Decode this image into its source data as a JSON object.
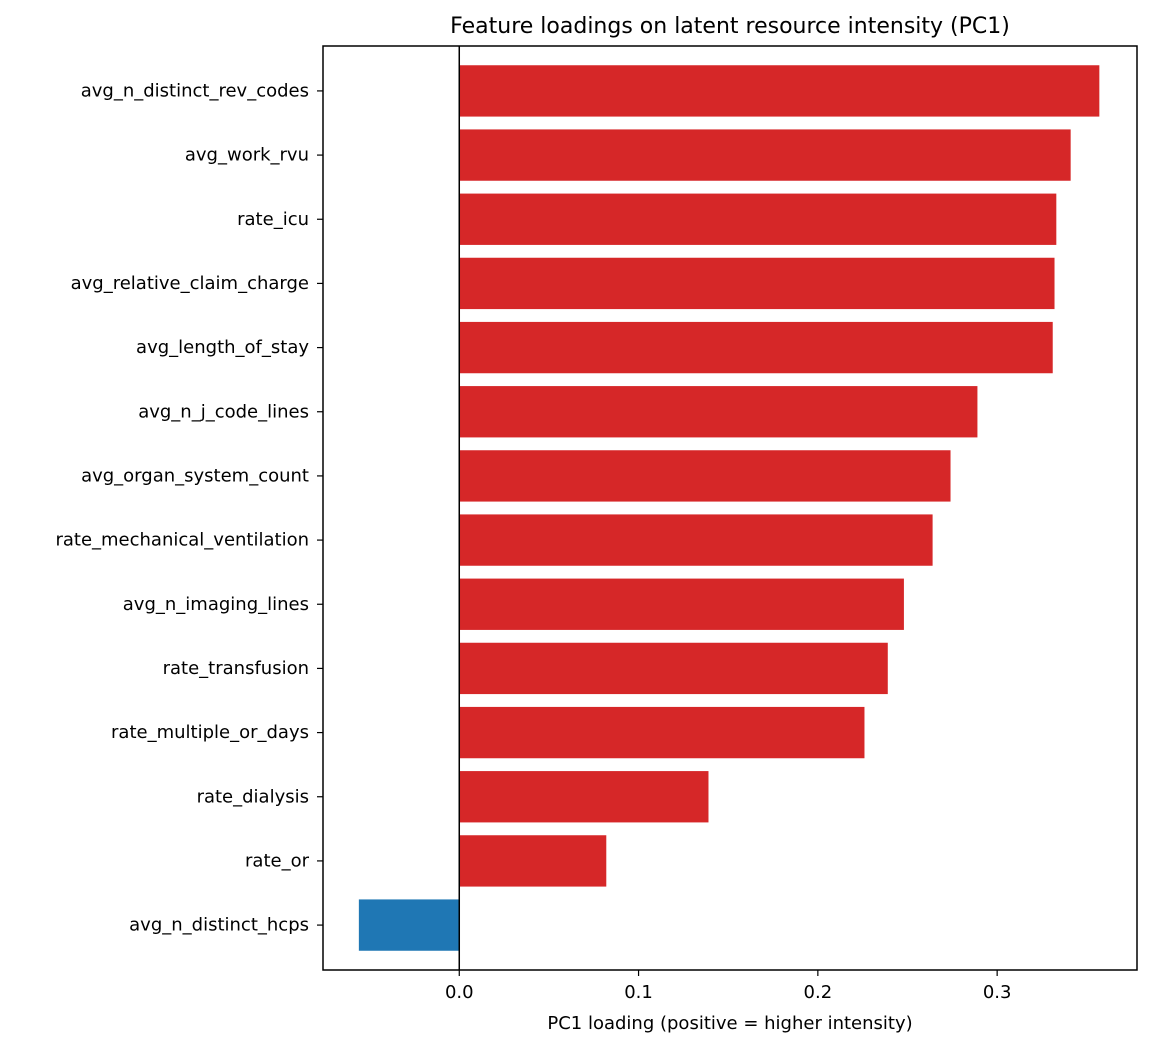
{
  "chart_data": {
    "type": "bar",
    "orientation": "horizontal",
    "title": "Feature loadings on latent resource intensity (PC1)",
    "xlabel": "PC1 loading (positive = higher intensity)",
    "ylabel": "",
    "xlim": [
      -0.076,
      0.378
    ],
    "xticks": [
      "0.0",
      "0.1",
      "0.2",
      "0.3"
    ],
    "xtick_values": [
      0.0,
      0.1,
      0.2,
      0.3
    ],
    "grid": false,
    "legend": "none",
    "colors": {
      "positive": "#d62728",
      "negative": "#1f77b4"
    },
    "categories": [
      "avg_n_distinct_rev_codes",
      "avg_work_rvu",
      "rate_icu",
      "avg_relative_claim_charge",
      "avg_length_of_stay",
      "avg_n_j_code_lines",
      "avg_organ_system_count",
      "rate_mechanical_ventilation",
      "avg_n_imaging_lines",
      "rate_transfusion",
      "rate_multiple_or_days",
      "rate_dialysis",
      "rate_or",
      "avg_n_distinct_hcps"
    ],
    "values": [
      0.357,
      0.341,
      0.333,
      0.332,
      0.331,
      0.289,
      0.274,
      0.264,
      0.248,
      0.239,
      0.226,
      0.139,
      0.082,
      -0.056
    ]
  }
}
